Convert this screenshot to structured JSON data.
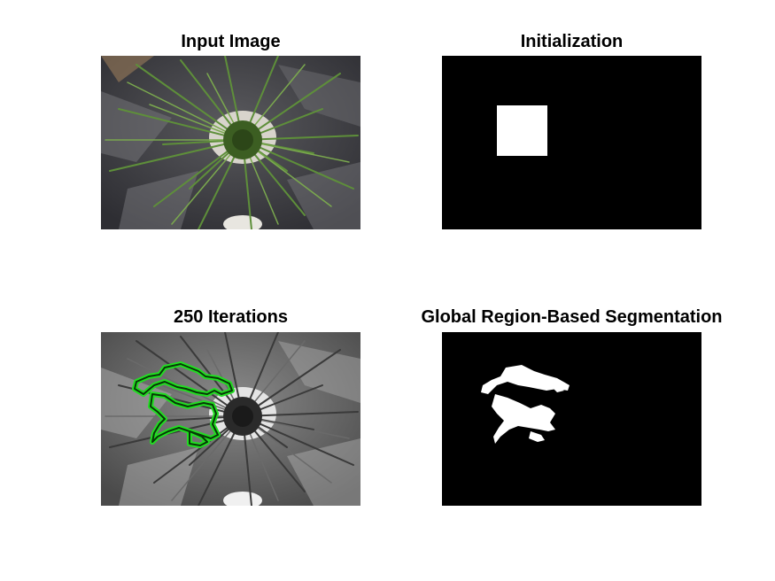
{
  "figure": {
    "panels": [
      {
        "title": "Input Image",
        "content": "photo of a grass plant from above on dark plastic sheet"
      },
      {
        "title": "Initialization",
        "content": "black mask with white square"
      },
      {
        "title": "250 Iterations",
        "content": "grayscale photo with green contour"
      },
      {
        "title": "Global Region-Based Segmentation",
        "content": "black mask with white segmented region"
      }
    ]
  },
  "colors": {
    "background": "#ffffff",
    "mask_background": "#000000",
    "mask_foreground": "#ffffff",
    "contour": "#22dd22",
    "foliage": "#4a7a2a"
  }
}
